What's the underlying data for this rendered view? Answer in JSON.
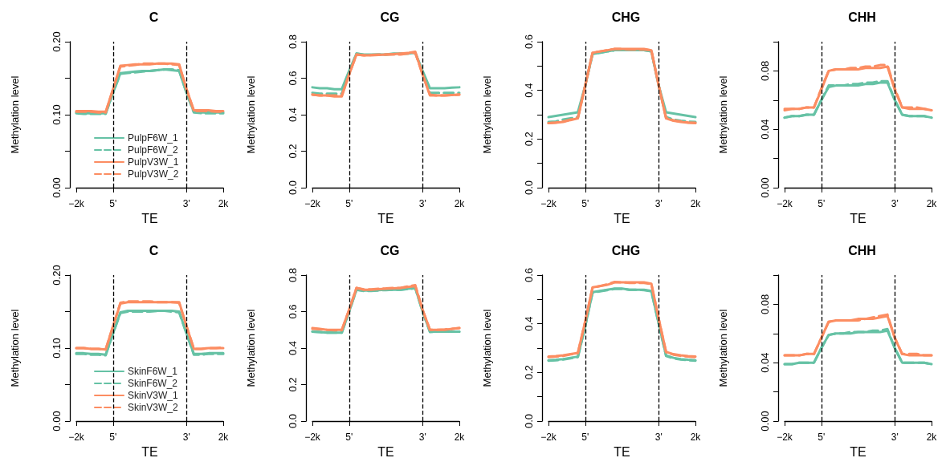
{
  "chart_data": [
    {
      "type": "line",
      "title": "C",
      "xlabel": "TE",
      "ylabel": "Methylation level",
      "marker": "none",
      "legend": "bottom left",
      "categories": [
        "−2k",
        null,
        null,
        null,
        null,
        "5'",
        null,
        null,
        null,
        null,
        null,
        null,
        null,
        null,
        null,
        "3'",
        null,
        null,
        null,
        null,
        "2k"
      ],
      "ylim": [
        0,
        0.2
      ],
      "yticks": [
        {
          "value": 0,
          "label": "0.00"
        },
        {
          "value": 0.05,
          "label": null
        },
        {
          "value": 0.1,
          "label": "0.10"
        },
        {
          "value": 0.15,
          "label": null
        },
        {
          "value": 0.2,
          "label": "0.20"
        }
      ],
      "ref_lines": [
        {
          "axis": "x",
          "value": "5'",
          "line_style": "dashed",
          "color": "#000000"
        },
        {
          "axis": "x",
          "value": "3'",
          "line_style": "dashed",
          "color": "#000000"
        }
      ],
      "series": [
        {
          "name": "PulpF6W_1",
          "color": "#66c2a5",
          "line_style": "solid",
          "values": [
            0.103,
            0.102,
            0.102,
            0.102,
            0.102,
            0.13,
            0.157,
            0.158,
            0.159,
            0.16,
            0.16,
            0.161,
            0.162,
            0.161,
            0.16,
            0.13,
            0.104,
            0.103,
            0.103,
            0.103,
            0.103
          ]
        },
        {
          "name": "PulpF6W_2",
          "color": "#66c2a5",
          "line_style": "dashed",
          "values": [
            0.102,
            0.101,
            0.101,
            0.101,
            0.101,
            0.13,
            0.156,
            0.157,
            0.158,
            0.159,
            0.16,
            0.161,
            0.162,
            0.162,
            0.161,
            0.13,
            0.103,
            0.102,
            0.102,
            0.102,
            0.102
          ]
        },
        {
          "name": "PulpV3W_1",
          "color": "#fc8d62",
          "line_style": "solid",
          "values": [
            0.105,
            0.105,
            0.105,
            0.104,
            0.104,
            0.135,
            0.167,
            0.168,
            0.169,
            0.169,
            0.169,
            0.17,
            0.17,
            0.17,
            0.169,
            0.135,
            0.106,
            0.106,
            0.106,
            0.105,
            0.105
          ]
        },
        {
          "name": "PulpV3W_2",
          "color": "#fc8d62",
          "line_style": "dashed",
          "values": [
            0.104,
            0.104,
            0.104,
            0.103,
            0.103,
            0.135,
            0.166,
            0.167,
            0.168,
            0.17,
            0.17,
            0.17,
            0.17,
            0.169,
            0.168,
            0.135,
            0.105,
            0.105,
            0.105,
            0.104,
            0.104
          ]
        }
      ]
    },
    {
      "type": "line",
      "title": "CG",
      "xlabel": "TE",
      "ylabel": "Methylation level",
      "marker": "none",
      "categories": [
        "−2k",
        null,
        null,
        null,
        null,
        "5'",
        null,
        null,
        null,
        null,
        null,
        null,
        null,
        null,
        null,
        "3'",
        null,
        null,
        null,
        null,
        "2k"
      ],
      "ylim": [
        0,
        0.8
      ],
      "yticks": [
        {
          "value": 0,
          "label": "0.0"
        },
        0.2,
        0.4,
        0.6,
        0.8
      ],
      "ref_lines": [
        {
          "axis": "x",
          "value": "5'",
          "line_style": "dashed",
          "color": "#000000"
        },
        {
          "axis": "x",
          "value": "3'",
          "line_style": "dashed",
          "color": "#000000"
        }
      ],
      "series": [
        {
          "color": "#66c2a5",
          "line_style": "solid",
          "values": [
            0.55,
            0.545,
            0.545,
            0.54,
            0.54,
            0.64,
            0.735,
            0.73,
            0.73,
            0.73,
            0.73,
            0.735,
            0.735,
            0.735,
            0.74,
            0.64,
            0.545,
            0.545,
            0.545,
            0.548,
            0.55
          ]
        },
        {
          "color": "#66c2a5",
          "line_style": "dashed",
          "values": [
            0.52,
            0.515,
            0.515,
            0.515,
            0.515,
            0.63,
            0.735,
            0.728,
            0.728,
            0.73,
            0.73,
            0.732,
            0.735,
            0.735,
            0.74,
            0.63,
            0.52,
            0.52,
            0.52,
            0.52,
            0.52
          ]
        },
        {
          "color": "#fc8d62",
          "line_style": "solid",
          "values": [
            0.51,
            0.505,
            0.505,
            0.5,
            0.5,
            0.62,
            0.73,
            0.725,
            0.725,
            0.728,
            0.73,
            0.732,
            0.735,
            0.738,
            0.745,
            0.62,
            0.505,
            0.505,
            0.505,
            0.508,
            0.51
          ]
        },
        {
          "color": "#fc8d62",
          "line_style": "dashed",
          "values": [
            0.51,
            0.505,
            0.505,
            0.505,
            0.505,
            0.62,
            0.73,
            0.725,
            0.727,
            0.73,
            0.73,
            0.73,
            0.73,
            0.735,
            0.74,
            0.62,
            0.51,
            0.505,
            0.505,
            0.508,
            0.51
          ]
        }
      ]
    },
    {
      "type": "line",
      "title": "CHG",
      "xlabel": "TE",
      "ylabel": "Methylation level",
      "marker": "none",
      "categories": [
        "−2k",
        null,
        null,
        null,
        null,
        "5'",
        null,
        null,
        null,
        null,
        null,
        null,
        null,
        null,
        null,
        "3'",
        null,
        null,
        null,
        null,
        "2k"
      ],
      "ylim": [
        0,
        0.6
      ],
      "yticks": [
        {
          "value": 0,
          "label": "0.0"
        },
        {
          "value": 0.1,
          "label": null
        },
        0.2,
        {
          "value": 0.3,
          "label": null
        },
        0.4,
        {
          "value": 0.5,
          "label": null
        },
        0.6
      ],
      "ref_lines": [
        {
          "axis": "x",
          "value": "5'",
          "line_style": "dashed",
          "color": "#000000"
        },
        {
          "axis": "x",
          "value": "3'",
          "line_style": "dashed",
          "color": "#000000"
        }
      ],
      "series": [
        {
          "color": "#66c2a5",
          "line_style": "solid",
          "values": [
            0.29,
            0.295,
            0.3,
            0.305,
            0.31,
            0.42,
            0.55,
            0.555,
            0.56,
            0.565,
            0.565,
            0.565,
            0.565,
            0.565,
            0.56,
            0.42,
            0.31,
            0.305,
            0.3,
            0.295,
            0.29
          ]
        },
        {
          "color": "#66c2a5",
          "line_style": "dashed",
          "values": [
            0.27,
            0.272,
            0.28,
            0.285,
            0.29,
            0.42,
            0.55,
            0.555,
            0.56,
            0.565,
            0.565,
            0.565,
            0.565,
            0.565,
            0.56,
            0.42,
            0.29,
            0.28,
            0.275,
            0.272,
            0.27
          ]
        },
        {
          "color": "#fc8d62",
          "line_style": "solid",
          "values": [
            0.265,
            0.267,
            0.27,
            0.278,
            0.285,
            0.42,
            0.555,
            0.56,
            0.565,
            0.57,
            0.57,
            0.57,
            0.57,
            0.57,
            0.565,
            0.42,
            0.285,
            0.275,
            0.27,
            0.267,
            0.265
          ]
        },
        {
          "color": "#fc8d62",
          "line_style": "dashed",
          "values": [
            0.265,
            0.268,
            0.272,
            0.28,
            0.287,
            0.42,
            0.555,
            0.56,
            0.565,
            0.57,
            0.57,
            0.568,
            0.568,
            0.568,
            0.565,
            0.42,
            0.287,
            0.277,
            0.272,
            0.268,
            0.267
          ]
        }
      ]
    },
    {
      "type": "line",
      "title": "CHH",
      "xlabel": "TE",
      "ylabel": "Methylation level",
      "marker": "none",
      "categories": [
        "−2k",
        null,
        null,
        null,
        null,
        "5'",
        null,
        null,
        null,
        null,
        null,
        null,
        null,
        null,
        null,
        "3'",
        null,
        null,
        null,
        null,
        "2k"
      ],
      "ylim": [
        0,
        0.1
      ],
      "yticks": [
        {
          "value": 0,
          "label": "0.00"
        },
        {
          "value": 0.02,
          "label": null
        },
        0.04,
        {
          "value": 0.06,
          "label": null
        },
        0.08,
        {
          "value": 0.1,
          "label": null
        }
      ],
      "ref_lines": [
        {
          "axis": "x",
          "value": "5'",
          "line_style": "dashed",
          "color": "#000000"
        },
        {
          "axis": "x",
          "value": "3'",
          "line_style": "dashed",
          "color": "#000000"
        }
      ],
      "series": [
        {
          "color": "#66c2a5",
          "line_style": "solid",
          "values": [
            0.048,
            0.049,
            0.049,
            0.05,
            0.05,
            0.06,
            0.069,
            0.07,
            0.07,
            0.07,
            0.07,
            0.071,
            0.071,
            0.072,
            0.072,
            0.06,
            0.05,
            0.049,
            0.049,
            0.049,
            0.048
          ]
        },
        {
          "color": "#66c2a5",
          "line_style": "dashed",
          "values": [
            0.048,
            0.049,
            0.049,
            0.05,
            0.05,
            0.06,
            0.07,
            0.07,
            0.07,
            0.071,
            0.071,
            0.072,
            0.072,
            0.073,
            0.073,
            0.06,
            0.05,
            0.049,
            0.049,
            0.049,
            0.048
          ]
        },
        {
          "color": "#fc8d62",
          "line_style": "solid",
          "values": [
            0.053,
            0.054,
            0.054,
            0.055,
            0.055,
            0.067,
            0.08,
            0.081,
            0.081,
            0.081,
            0.081,
            0.082,
            0.082,
            0.082,
            0.083,
            0.067,
            0.055,
            0.054,
            0.054,
            0.054,
            0.053
          ]
        },
        {
          "color": "#fc8d62",
          "line_style": "dashed",
          "values": [
            0.054,
            0.054,
            0.054,
            0.055,
            0.055,
            0.068,
            0.08,
            0.081,
            0.081,
            0.082,
            0.082,
            0.083,
            0.083,
            0.084,
            0.084,
            0.068,
            0.055,
            0.055,
            0.055,
            0.054,
            0.053
          ]
        }
      ]
    },
    {
      "type": "line",
      "title": "C",
      "xlabel": "TE",
      "ylabel": "Methylation level",
      "marker": "none",
      "legend": "bottom left",
      "categories": [
        "−2k",
        null,
        null,
        null,
        null,
        "5'",
        null,
        null,
        null,
        null,
        null,
        null,
        null,
        null,
        null,
        "3'",
        null,
        null,
        null,
        null,
        "2k"
      ],
      "ylim": [
        0,
        0.2
      ],
      "yticks": [
        {
          "value": 0,
          "label": "0.00"
        },
        {
          "value": 0.05,
          "label": null
        },
        {
          "value": 0.1,
          "label": "0.10"
        },
        {
          "value": 0.15,
          "label": null
        },
        {
          "value": 0.2,
          "label": "0.20"
        }
      ],
      "ref_lines": [
        {
          "axis": "x",
          "value": "5'",
          "line_style": "dashed",
          "color": "#000000"
        },
        {
          "axis": "x",
          "value": "3'",
          "line_style": "dashed",
          "color": "#000000"
        }
      ],
      "series": [
        {
          "name": "SkinF6W_1",
          "color": "#66c2a5",
          "line_style": "solid",
          "values": [
            0.093,
            0.093,
            0.092,
            0.092,
            0.091,
            0.12,
            0.149,
            0.151,
            0.151,
            0.151,
            0.151,
            0.151,
            0.151,
            0.151,
            0.15,
            0.12,
            0.092,
            0.092,
            0.093,
            0.093,
            0.093
          ]
        },
        {
          "name": "SkinF6W_2",
          "color": "#66c2a5",
          "line_style": "dashed",
          "values": [
            0.092,
            0.092,
            0.091,
            0.091,
            0.09,
            0.12,
            0.148,
            0.15,
            0.15,
            0.15,
            0.15,
            0.151,
            0.151,
            0.15,
            0.149,
            0.12,
            0.091,
            0.091,
            0.092,
            0.092,
            0.092
          ]
        },
        {
          "name": "SkinV3W_1",
          "color": "#fc8d62",
          "line_style": "solid",
          "values": [
            0.1,
            0.1,
            0.099,
            0.099,
            0.098,
            0.13,
            0.161,
            0.163,
            0.163,
            0.163,
            0.163,
            0.163,
            0.163,
            0.163,
            0.163,
            0.13,
            0.099,
            0.099,
            0.1,
            0.1,
            0.1
          ]
        },
        {
          "name": "SkinV3W_2",
          "color": "#fc8d62",
          "line_style": "dashed",
          "values": [
            0.1,
            0.1,
            0.099,
            0.099,
            0.098,
            0.13,
            0.162,
            0.164,
            0.164,
            0.164,
            0.164,
            0.163,
            0.163,
            0.163,
            0.162,
            0.13,
            0.099,
            0.099,
            0.1,
            0.1,
            0.101
          ]
        }
      ]
    },
    {
      "type": "line",
      "title": "CG",
      "xlabel": "TE",
      "ylabel": "Methylation level",
      "marker": "none",
      "categories": [
        "−2k",
        null,
        null,
        null,
        null,
        "5'",
        null,
        null,
        null,
        null,
        null,
        null,
        null,
        null,
        null,
        "3'",
        null,
        null,
        null,
        null,
        "2k"
      ],
      "ylim": [
        0,
        0.8
      ],
      "yticks": [
        {
          "value": 0,
          "label": "0.0"
        },
        0.2,
        0.4,
        0.6,
        0.8
      ],
      "ref_lines": [
        {
          "axis": "x",
          "value": "5'",
          "line_style": "dashed",
          "color": "#000000"
        },
        {
          "axis": "x",
          "value": "3'",
          "line_style": "dashed",
          "color": "#000000"
        }
      ],
      "series": [
        {
          "color": "#66c2a5",
          "line_style": "solid",
          "values": [
            0.49,
            0.488,
            0.485,
            0.485,
            0.485,
            0.6,
            0.72,
            0.715,
            0.715,
            0.718,
            0.72,
            0.72,
            0.72,
            0.725,
            0.73,
            0.6,
            0.49,
            0.49,
            0.49,
            0.49,
            0.49
          ]
        },
        {
          "color": "#66c2a5",
          "line_style": "dashed",
          "values": [
            0.49,
            0.488,
            0.485,
            0.485,
            0.485,
            0.6,
            0.72,
            0.713,
            0.713,
            0.716,
            0.718,
            0.72,
            0.72,
            0.723,
            0.728,
            0.6,
            0.488,
            0.49,
            0.49,
            0.49,
            0.49
          ]
        },
        {
          "color": "#fc8d62",
          "line_style": "solid",
          "values": [
            0.51,
            0.505,
            0.5,
            0.5,
            0.5,
            0.61,
            0.73,
            0.72,
            0.72,
            0.723,
            0.725,
            0.728,
            0.73,
            0.735,
            0.74,
            0.61,
            0.5,
            0.5,
            0.5,
            0.505,
            0.51
          ]
        },
        {
          "color": "#fc8d62",
          "line_style": "dashed",
          "values": [
            0.505,
            0.503,
            0.5,
            0.498,
            0.498,
            0.61,
            0.73,
            0.722,
            0.722,
            0.725,
            0.727,
            0.73,
            0.73,
            0.738,
            0.745,
            0.61,
            0.5,
            0.5,
            0.502,
            0.505,
            0.51
          ]
        }
      ]
    },
    {
      "type": "line",
      "title": "CHG",
      "xlabel": "TE",
      "ylabel": "Methylation level",
      "marker": "none",
      "categories": [
        "−2k",
        null,
        null,
        null,
        null,
        "5'",
        null,
        null,
        null,
        null,
        null,
        null,
        null,
        null,
        null,
        "3'",
        null,
        null,
        null,
        null,
        "2k"
      ],
      "ylim": [
        0,
        0.6
      ],
      "yticks": [
        {
          "value": 0,
          "label": "0.0"
        },
        {
          "value": 0.1,
          "label": null
        },
        0.2,
        {
          "value": 0.3,
          "label": null
        },
        0.4,
        {
          "value": 0.5,
          "label": null
        },
        0.6
      ],
      "ref_lines": [
        {
          "axis": "x",
          "value": "5'",
          "line_style": "dashed",
          "color": "#000000"
        },
        {
          "axis": "x",
          "value": "3'",
          "line_style": "dashed",
          "color": "#000000"
        }
      ],
      "series": [
        {
          "color": "#66c2a5",
          "line_style": "solid",
          "values": [
            0.25,
            0.252,
            0.255,
            0.26,
            0.265,
            0.39,
            0.53,
            0.535,
            0.54,
            0.545,
            0.545,
            0.54,
            0.54,
            0.54,
            0.535,
            0.4,
            0.27,
            0.26,
            0.255,
            0.252,
            0.25
          ]
        },
        {
          "color": "#66c2a5",
          "line_style": "dashed",
          "values": [
            0.248,
            0.25,
            0.253,
            0.258,
            0.263,
            0.39,
            0.528,
            0.533,
            0.538,
            0.543,
            0.543,
            0.54,
            0.54,
            0.538,
            0.533,
            0.4,
            0.268,
            0.258,
            0.253,
            0.25,
            0.248
          ]
        },
        {
          "color": "#fc8d62",
          "line_style": "solid",
          "values": [
            0.265,
            0.267,
            0.27,
            0.275,
            0.28,
            0.41,
            0.55,
            0.555,
            0.56,
            0.57,
            0.57,
            0.57,
            0.57,
            0.57,
            0.565,
            0.42,
            0.285,
            0.275,
            0.27,
            0.267,
            0.265
          ]
        },
        {
          "color": "#fc8d62",
          "line_style": "dashed",
          "values": [
            0.263,
            0.265,
            0.268,
            0.274,
            0.28,
            0.41,
            0.548,
            0.555,
            0.562,
            0.572,
            0.57,
            0.568,
            0.568,
            0.568,
            0.563,
            0.42,
            0.283,
            0.273,
            0.268,
            0.265,
            0.263
          ]
        }
      ]
    },
    {
      "type": "line",
      "title": "CHH",
      "xlabel": "TE",
      "ylabel": "Methylation level",
      "marker": "none",
      "categories": [
        "−2k",
        null,
        null,
        null,
        null,
        "5'",
        null,
        null,
        null,
        null,
        null,
        null,
        null,
        null,
        null,
        "3'",
        null,
        null,
        null,
        null,
        "2k"
      ],
      "ylim": [
        0,
        0.1
      ],
      "yticks": [
        {
          "value": 0,
          "label": "0.00"
        },
        {
          "value": 0.02,
          "label": null
        },
        0.04,
        {
          "value": 0.06,
          "label": null
        },
        0.08,
        {
          "value": 0.1,
          "label": null
        }
      ],
      "ref_lines": [
        {
          "axis": "x",
          "value": "5'",
          "line_style": "dashed",
          "color": "#000000"
        },
        {
          "axis": "x",
          "value": "3'",
          "line_style": "dashed",
          "color": "#000000"
        }
      ],
      "series": [
        {
          "color": "#66c2a5",
          "line_style": "solid",
          "values": [
            0.039,
            0.039,
            0.04,
            0.04,
            0.04,
            0.05,
            0.059,
            0.06,
            0.06,
            0.06,
            0.061,
            0.061,
            0.061,
            0.061,
            0.062,
            0.05,
            0.04,
            0.04,
            0.04,
            0.04,
            0.039
          ]
        },
        {
          "color": "#66c2a5",
          "line_style": "dashed",
          "values": [
            0.039,
            0.039,
            0.04,
            0.04,
            0.04,
            0.05,
            0.059,
            0.06,
            0.06,
            0.061,
            0.061,
            0.061,
            0.062,
            0.062,
            0.063,
            0.05,
            0.04,
            0.04,
            0.04,
            0.04,
            0.039
          ]
        },
        {
          "color": "#fc8d62",
          "line_style": "solid",
          "values": [
            0.045,
            0.045,
            0.045,
            0.046,
            0.046,
            0.057,
            0.068,
            0.069,
            0.069,
            0.069,
            0.07,
            0.07,
            0.07,
            0.071,
            0.072,
            0.057,
            0.046,
            0.045,
            0.045,
            0.045,
            0.045
          ]
        },
        {
          "color": "#fc8d62",
          "line_style": "dashed",
          "values": [
            0.045,
            0.045,
            0.045,
            0.046,
            0.046,
            0.057,
            0.068,
            0.069,
            0.069,
            0.069,
            0.069,
            0.07,
            0.071,
            0.072,
            0.073,
            0.057,
            0.046,
            0.046,
            0.046,
            0.045,
            0.045
          ]
        }
      ]
    }
  ]
}
